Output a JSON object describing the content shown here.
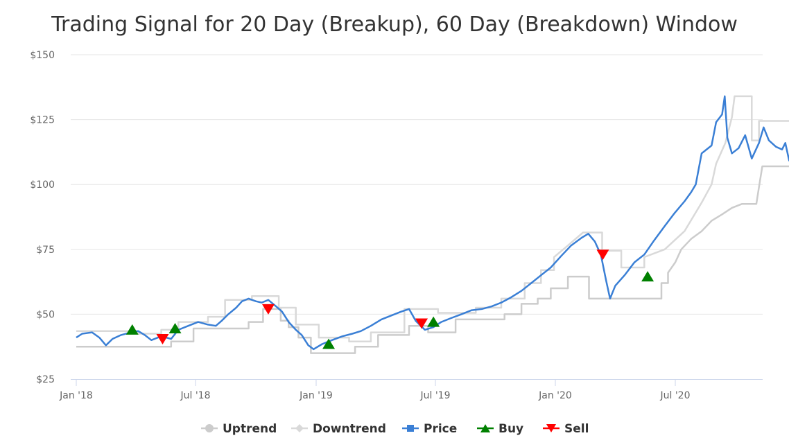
{
  "chart_data": {
    "type": "line",
    "title": "Trading Signal for 20 Day (Breakup), 60 Day (Breakdown) Window",
    "xlabel": "",
    "ylabel": "",
    "x_range": [
      "2018-01-01",
      "2020-12-31"
    ],
    "ylim": [
      25,
      150
    ],
    "y_ticks": [
      25,
      50,
      75,
      100,
      125,
      150
    ],
    "y_tick_labels": [
      "$25",
      "$50",
      "$75",
      "$100",
      "$125",
      "$150"
    ],
    "x_ticks": [
      "2018-01-01",
      "2018-07-01",
      "2019-01-01",
      "2019-07-01",
      "2020-01-01",
      "2020-07-01"
    ],
    "x_tick_labels": [
      "Jan '18",
      "Jul '18",
      "Jan '19",
      "Jul '19",
      "Jan '20",
      "Jul '20"
    ],
    "grid": "horizontal",
    "legend_position": "bottom-center",
    "colors": {
      "uptrend": "#cccccc",
      "downtrend": "#d9d9d9",
      "price": "#3a7fd5",
      "buy": "#008000",
      "sell": "#ff0000"
    },
    "series": [
      {
        "name": "Uptrend",
        "points": [
          [
            "2018-01-01",
            37.5
          ],
          [
            "2018-05-25",
            37.5
          ],
          [
            "2018-05-25",
            39.5
          ],
          [
            "2018-06-28",
            39.5
          ],
          [
            "2018-06-28",
            44.5
          ],
          [
            "2018-09-20",
            44.5
          ],
          [
            "2018-09-20",
            47.0
          ],
          [
            "2018-10-12",
            47.0
          ],
          [
            "2018-10-12",
            52.0
          ],
          [
            "2018-11-08",
            52.0
          ],
          [
            "2018-11-08",
            47.5
          ],
          [
            "2018-11-20",
            47.5
          ],
          [
            "2018-11-20",
            45.0
          ],
          [
            "2018-12-05",
            45.0
          ],
          [
            "2018-12-05",
            41.0
          ],
          [
            "2018-12-24",
            41.0
          ],
          [
            "2018-12-24",
            35.0
          ],
          [
            "2019-03-01",
            35.0
          ],
          [
            "2019-03-01",
            37.5
          ],
          [
            "2019-04-05",
            37.5
          ],
          [
            "2019-04-05",
            42.0
          ],
          [
            "2019-05-22",
            42.0
          ],
          [
            "2019-05-22",
            45.5
          ],
          [
            "2019-06-20",
            45.5
          ],
          [
            "2019-06-20",
            43.0
          ],
          [
            "2019-08-01",
            43.0
          ],
          [
            "2019-08-01",
            48.0
          ],
          [
            "2019-10-15",
            48.0
          ],
          [
            "2019-10-15",
            50.0
          ],
          [
            "2019-11-10",
            50.0
          ],
          [
            "2019-11-10",
            54.0
          ],
          [
            "2019-12-05",
            54.0
          ],
          [
            "2019-12-05",
            56.0
          ],
          [
            "2019-12-25",
            56.0
          ],
          [
            "2019-12-25",
            60.0
          ],
          [
            "2020-01-20",
            60.0
          ],
          [
            "2020-01-20",
            64.5
          ],
          [
            "2020-02-21",
            64.5
          ],
          [
            "2020-02-21",
            56.0
          ],
          [
            "2020-06-10",
            56.0
          ],
          [
            "2020-06-10",
            62.0
          ],
          [
            "2020-06-20",
            62.0
          ],
          [
            "2020-06-20",
            66.0
          ],
          [
            "2020-07-01",
            70.0
          ],
          [
            "2020-07-10",
            75.0
          ],
          [
            "2020-07-25",
            79.0
          ],
          [
            "2020-08-10",
            82.0
          ],
          [
            "2020-08-25",
            86.0
          ],
          [
            "2020-09-10",
            88.5
          ],
          [
            "2020-09-25",
            91.0
          ],
          [
            "2020-10-10",
            92.5
          ],
          [
            "2020-11-01",
            92.5
          ],
          [
            "2020-11-05",
            99.0
          ],
          [
            "2020-11-10",
            107.0
          ],
          [
            "2020-12-31",
            107.0
          ]
        ]
      },
      {
        "name": "Downtrend",
        "points": [
          [
            "2018-01-01",
            43.5
          ],
          [
            "2018-04-05",
            43.5
          ],
          [
            "2018-04-05",
            42.5
          ],
          [
            "2018-05-10",
            42.5
          ],
          [
            "2018-05-10",
            44.0
          ],
          [
            "2018-06-05",
            44.0
          ],
          [
            "2018-06-05",
            47.0
          ],
          [
            "2018-07-20",
            47.0
          ],
          [
            "2018-07-20",
            49.0
          ],
          [
            "2018-08-15",
            49.0
          ],
          [
            "2018-08-15",
            55.5
          ],
          [
            "2018-09-25",
            55.5
          ],
          [
            "2018-09-25",
            57.0
          ],
          [
            "2018-11-05",
            57.0
          ],
          [
            "2018-11-05",
            52.5
          ],
          [
            "2018-12-01",
            52.5
          ],
          [
            "2018-12-01",
            46.0
          ],
          [
            "2019-01-05",
            46.0
          ],
          [
            "2019-01-05",
            41.0
          ],
          [
            "2019-02-20",
            41.0
          ],
          [
            "2019-02-20",
            39.5
          ],
          [
            "2019-03-25",
            39.5
          ],
          [
            "2019-03-25",
            43.0
          ],
          [
            "2019-05-15",
            43.0
          ],
          [
            "2019-05-15",
            52.0
          ],
          [
            "2019-07-05",
            52.0
          ],
          [
            "2019-07-05",
            50.5
          ],
          [
            "2019-09-01",
            50.5
          ],
          [
            "2019-09-01",
            52.5
          ],
          [
            "2019-10-10",
            52.5
          ],
          [
            "2019-10-10",
            56.0
          ],
          [
            "2019-11-15",
            56.0
          ],
          [
            "2019-11-15",
            62.0
          ],
          [
            "2019-12-10",
            62.0
          ],
          [
            "2019-12-10",
            67.0
          ],
          [
            "2019-12-30",
            67.0
          ],
          [
            "2019-12-30",
            72.0
          ],
          [
            "2020-01-20",
            76.5
          ],
          [
            "2020-02-12",
            81.5
          ],
          [
            "2020-03-12",
            81.5
          ],
          [
            "2020-03-12",
            74.5
          ],
          [
            "2020-04-10",
            74.5
          ],
          [
            "2020-04-10",
            68.0
          ],
          [
            "2020-05-15",
            68.0
          ],
          [
            "2020-05-15",
            72.0
          ],
          [
            "2020-06-15",
            75.0
          ],
          [
            "2020-07-15",
            82.0
          ],
          [
            "2020-08-10",
            93.0
          ],
          [
            "2020-08-25",
            100.0
          ],
          [
            "2020-09-01",
            108.0
          ],
          [
            "2020-09-15",
            116.0
          ],
          [
            "2020-09-25",
            126.0
          ],
          [
            "2020-09-29",
            134.0
          ],
          [
            "2020-10-25",
            134.0
          ],
          [
            "2020-10-25",
            117.0
          ],
          [
            "2020-11-05",
            117.0
          ],
          [
            "2020-11-05",
            124.5
          ],
          [
            "2020-12-31",
            124.5
          ]
        ]
      },
      {
        "name": "Price",
        "points": [
          [
            "2018-01-01",
            41.0
          ],
          [
            "2018-01-10",
            42.5
          ],
          [
            "2018-01-25",
            43.0
          ],
          [
            "2018-02-05",
            41.0
          ],
          [
            "2018-02-15",
            38.0
          ],
          [
            "2018-02-25",
            40.5
          ],
          [
            "2018-03-10",
            42.0
          ],
          [
            "2018-03-25",
            43.0
          ],
          [
            "2018-04-05",
            43.5
          ],
          [
            "2018-04-15",
            42.0
          ],
          [
            "2018-04-25",
            40.0
          ],
          [
            "2018-05-10",
            41.5
          ],
          [
            "2018-05-25",
            40.5
          ],
          [
            "2018-06-05",
            44.0
          ],
          [
            "2018-06-20",
            45.5
          ],
          [
            "2018-07-05",
            47.0
          ],
          [
            "2018-07-20",
            46.0
          ],
          [
            "2018-08-01",
            45.5
          ],
          [
            "2018-08-10",
            47.5
          ],
          [
            "2018-08-20",
            50.0
          ],
          [
            "2018-09-01",
            52.5
          ],
          [
            "2018-09-10",
            55.0
          ],
          [
            "2018-09-20",
            56.0
          ],
          [
            "2018-10-01",
            55.0
          ],
          [
            "2018-10-10",
            54.5
          ],
          [
            "2018-10-20",
            55.5
          ],
          [
            "2018-11-01",
            53.0
          ],
          [
            "2018-11-10",
            51.0
          ],
          [
            "2018-11-20",
            47.0
          ],
          [
            "2018-12-01",
            44.0
          ],
          [
            "2018-12-10",
            42.0
          ],
          [
            "2018-12-20",
            38.0
          ],
          [
            "2018-12-28",
            36.5
          ],
          [
            "2019-01-10",
            38.5
          ],
          [
            "2019-01-25",
            40.0
          ],
          [
            "2019-02-10",
            41.5
          ],
          [
            "2019-02-25",
            42.5
          ],
          [
            "2019-03-10",
            43.5
          ],
          [
            "2019-03-25",
            45.5
          ],
          [
            "2019-04-10",
            48.0
          ],
          [
            "2019-04-25",
            49.5
          ],
          [
            "2019-05-10",
            51.0
          ],
          [
            "2019-05-22",
            52.0
          ],
          [
            "2019-06-01",
            47.5
          ],
          [
            "2019-06-15",
            44.0
          ],
          [
            "2019-06-28",
            45.0
          ],
          [
            "2019-07-10",
            47.0
          ],
          [
            "2019-07-25",
            48.5
          ],
          [
            "2019-08-10",
            50.0
          ],
          [
            "2019-08-25",
            51.5
          ],
          [
            "2019-09-10",
            52.0
          ],
          [
            "2019-09-25",
            53.0
          ],
          [
            "2019-10-10",
            54.5
          ],
          [
            "2019-10-25",
            56.5
          ],
          [
            "2019-11-10",
            59.0
          ],
          [
            "2019-11-25",
            62.0
          ],
          [
            "2019-12-10",
            65.0
          ],
          [
            "2019-12-25",
            68.0
          ],
          [
            "2020-01-10",
            72.5
          ],
          [
            "2020-01-25",
            76.5
          ],
          [
            "2020-02-10",
            79.5
          ],
          [
            "2020-02-20",
            81.0
          ],
          [
            "2020-03-01",
            78.0
          ],
          [
            "2020-03-10",
            73.0
          ],
          [
            "2020-03-18",
            63.0
          ],
          [
            "2020-03-24",
            56.0
          ],
          [
            "2020-04-01",
            61.0
          ],
          [
            "2020-04-15",
            65.0
          ],
          [
            "2020-04-30",
            70.0
          ],
          [
            "2020-05-15",
            73.0
          ],
          [
            "2020-05-30",
            78.5
          ],
          [
            "2020-06-15",
            84.0
          ],
          [
            "2020-06-30",
            89.0
          ],
          [
            "2020-07-15",
            93.5
          ],
          [
            "2020-07-25",
            97.0
          ],
          [
            "2020-08-01",
            100.0
          ],
          [
            "2020-08-10",
            112.0
          ],
          [
            "2020-08-25",
            115.0
          ],
          [
            "2020-09-01",
            124.0
          ],
          [
            "2020-09-10",
            127.0
          ],
          [
            "2020-09-14",
            134.0
          ],
          [
            "2020-09-18",
            118.0
          ],
          [
            "2020-09-25",
            112.0
          ],
          [
            "2020-10-05",
            114.0
          ],
          [
            "2020-10-15",
            119.0
          ],
          [
            "2020-10-25",
            110.0
          ],
          [
            "2020-11-05",
            116.0
          ],
          [
            "2020-11-12",
            122.0
          ],
          [
            "2020-11-20",
            117.0
          ],
          [
            "2020-12-01",
            114.5
          ],
          [
            "2020-12-10",
            113.5
          ],
          [
            "2020-12-15",
            116.0
          ],
          [
            "2020-12-21",
            109.0
          ]
        ]
      },
      {
        "name": "Buy",
        "points": [
          [
            "2018-03-27",
            44.0
          ],
          [
            "2018-05-31",
            44.5
          ],
          [
            "2019-01-20",
            38.5
          ],
          [
            "2019-06-28",
            47.0
          ],
          [
            "2020-05-20",
            64.5
          ]
        ]
      },
      {
        "name": "Sell",
        "points": [
          [
            "2018-05-12",
            40.5
          ],
          [
            "2018-10-20",
            52.0
          ],
          [
            "2019-06-10",
            46.5
          ],
          [
            "2020-03-13",
            73.0
          ]
        ]
      }
    ],
    "legend": [
      {
        "name": "Uptrend",
        "symbol": "circle"
      },
      {
        "name": "Downtrend",
        "symbol": "diamond"
      },
      {
        "name": "Price",
        "symbol": "square"
      },
      {
        "name": "Buy",
        "symbol": "triangle-up"
      },
      {
        "name": "Sell",
        "symbol": "triangle-down"
      }
    ]
  }
}
